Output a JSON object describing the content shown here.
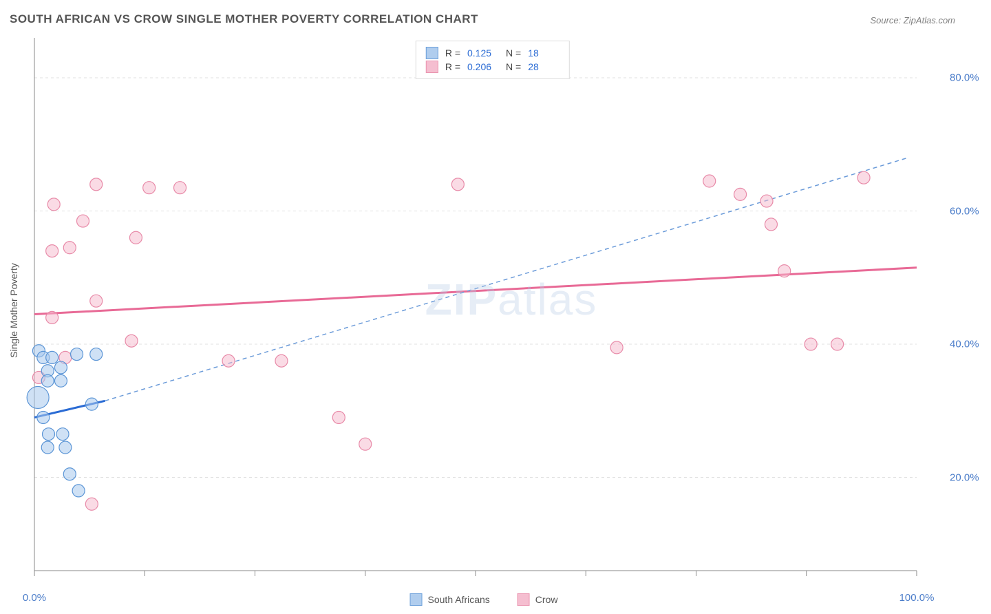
{
  "title": "SOUTH AFRICAN VS CROW SINGLE MOTHER POVERTY CORRELATION CHART",
  "source": "Source: ZipAtlas.com",
  "watermark_1": "ZIP",
  "watermark_2": "atlas",
  "chart": {
    "type": "scatter",
    "ylabel": "Single Mother Poverty",
    "xlim": [
      0,
      100
    ],
    "ylim": [
      6,
      86
    ],
    "ytick_labels": [
      "20.0%",
      "40.0%",
      "60.0%",
      "80.0%"
    ],
    "ytick_values": [
      20,
      40,
      60,
      80
    ],
    "xtick_values": [
      0,
      12.5,
      25,
      37.5,
      50,
      62.5,
      75,
      87.5,
      100
    ],
    "xtick_labels_shown": {
      "0": "0.0%",
      "100": "100.0%"
    },
    "grid_color": "#e0e0e0",
    "axis_color": "#888888",
    "background_color": "#ffffff",
    "marker_radius": 9,
    "marker_radius_large": 16,
    "series": {
      "south_africans": {
        "label": "South Africans",
        "fill_color": "#a8c8ed",
        "stroke_color": "#5b95d6",
        "fill_opacity": 0.55,
        "R": "0.125",
        "N": "18",
        "trend_color": "#2a6bd4",
        "trend_dash_color": "#6b9bd9",
        "trend_solid": {
          "x1": 0,
          "y1": 29,
          "x2": 8,
          "y2": 31.5
        },
        "trend_dash": {
          "x1": 8,
          "y1": 31.5,
          "x2": 99,
          "y2": 68
        },
        "points": [
          {
            "x": 0.5,
            "y": 39
          },
          {
            "x": 1,
            "y": 38
          },
          {
            "x": 2,
            "y": 38
          },
          {
            "x": 4.8,
            "y": 38.5
          },
          {
            "x": 7,
            "y": 38.5
          },
          {
            "x": 1.5,
            "y": 36
          },
          {
            "x": 3,
            "y": 36.5
          },
          {
            "x": 1.5,
            "y": 34.5
          },
          {
            "x": 3,
            "y": 34.5
          },
          {
            "x": 0.4,
            "y": 32,
            "r": 16
          },
          {
            "x": 6.5,
            "y": 31
          },
          {
            "x": 1,
            "y": 29
          },
          {
            "x": 1.6,
            "y": 26.5
          },
          {
            "x": 3.2,
            "y": 26.5
          },
          {
            "x": 1.5,
            "y": 24.5
          },
          {
            "x": 3.5,
            "y": 24.5
          },
          {
            "x": 4,
            "y": 20.5
          },
          {
            "x": 5,
            "y": 18
          }
        ]
      },
      "crow": {
        "label": "Crow",
        "fill_color": "#f5b8cc",
        "stroke_color": "#e88aa8",
        "fill_opacity": 0.5,
        "R": "0.206",
        "N": "28",
        "trend_color": "#e86a96",
        "trend": {
          "x1": 0,
          "y1": 44.5,
          "x2": 100,
          "y2": 51.5
        },
        "points": [
          {
            "x": 7,
            "y": 64
          },
          {
            "x": 13,
            "y": 63.5
          },
          {
            "x": 2.2,
            "y": 61
          },
          {
            "x": 5.5,
            "y": 58.5
          },
          {
            "x": 16.5,
            "y": 63.5
          },
          {
            "x": 11.5,
            "y": 56
          },
          {
            "x": 2,
            "y": 54
          },
          {
            "x": 4,
            "y": 54.5
          },
          {
            "x": 7,
            "y": 46.5
          },
          {
            "x": 2,
            "y": 44
          },
          {
            "x": 11,
            "y": 40.5
          },
          {
            "x": 22,
            "y": 37.5
          },
          {
            "x": 28,
            "y": 37.5
          },
          {
            "x": 0.5,
            "y": 35
          },
          {
            "x": 34.5,
            "y": 29
          },
          {
            "x": 37.5,
            "y": 25
          },
          {
            "x": 6.5,
            "y": 16
          },
          {
            "x": 48,
            "y": 64
          },
          {
            "x": 66,
            "y": 39.5
          },
          {
            "x": 76.5,
            "y": 64.5
          },
          {
            "x": 80,
            "y": 62.5
          },
          {
            "x": 83,
            "y": 61.5
          },
          {
            "x": 83.5,
            "y": 58
          },
          {
            "x": 85,
            "y": 51
          },
          {
            "x": 88,
            "y": 40
          },
          {
            "x": 91,
            "y": 40
          },
          {
            "x": 94,
            "y": 65
          },
          {
            "x": 3.5,
            "y": 38
          }
        ]
      }
    }
  }
}
